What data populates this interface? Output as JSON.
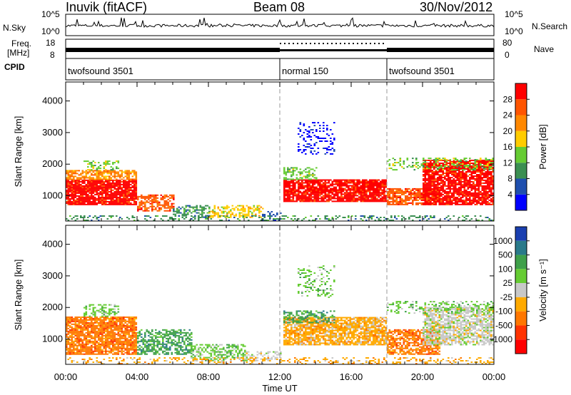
{
  "header": {
    "station": "Inuvik (fitACF)",
    "beam": "Beam 08",
    "date": "30/Nov/2012"
  },
  "strip_labels": {
    "nsky": "N.Sky",
    "nsky_ticks": [
      "10^5",
      "10^0"
    ],
    "nsearch": "N.Search",
    "freq_line1": "Freq.",
    "freq_line2": "[MHz]",
    "freq_ticks": [
      "18",
      "8"
    ],
    "nave": "Nave",
    "nave_ticks": [
      "80",
      "0"
    ],
    "cpid": "CPID"
  },
  "cpid_segments": [
    {
      "label": "twofsound 3501",
      "start_hour": 0
    },
    {
      "label": "normal 150",
      "start_hour": 12
    },
    {
      "label": "twofsound 3501",
      "start_hour": 18
    }
  ],
  "chart_data": [
    {
      "type": "heatmap",
      "name": "power",
      "ylabel": "Slant Range [km]",
      "xlim": [
        0,
        24
      ],
      "ylim": [
        200,
        4600
      ],
      "yticks": [
        "1000",
        "2000",
        "3000",
        "4000"
      ],
      "colorbar_label": "Power [dB]",
      "colorbar_ticks": [
        "4",
        "8",
        "12",
        "16",
        "20",
        "24",
        "28"
      ],
      "colorbar_colors": [
        "#0000ff",
        "#1f4fae",
        "#3b8f52",
        "#66cc33",
        "#ffcc00",
        "#ff8800",
        "#ff5500",
        "#ff0000"
      ],
      "markers_hours": [
        12,
        18
      ]
    },
    {
      "type": "heatmap",
      "name": "velocity",
      "ylabel": "Slant Range [km]",
      "xlabel": "Time UT",
      "xlim": [
        0,
        24
      ],
      "ylim": [
        200,
        4600
      ],
      "yticks": [
        "1000",
        "2000",
        "3000",
        "4000"
      ],
      "xticks": [
        "00:00",
        "04:00",
        "08:00",
        "12:00",
        "16:00",
        "20:00",
        "00:00"
      ],
      "colorbar_label": "Velocity [m s⁻¹]",
      "colorbar_ticks": [
        "1000",
        "500",
        "100",
        "25",
        "-25",
        "-100",
        "-500",
        "-1000"
      ],
      "colorbar_colors": [
        "#1a3fb0",
        "#2a7a8a",
        "#3fa04a",
        "#66cc33",
        "#c8c8c8",
        "#ffaa00",
        "#ff7700",
        "#ff3300",
        "#ff0000"
      ],
      "markers_hours": [
        12,
        18
      ]
    }
  ]
}
